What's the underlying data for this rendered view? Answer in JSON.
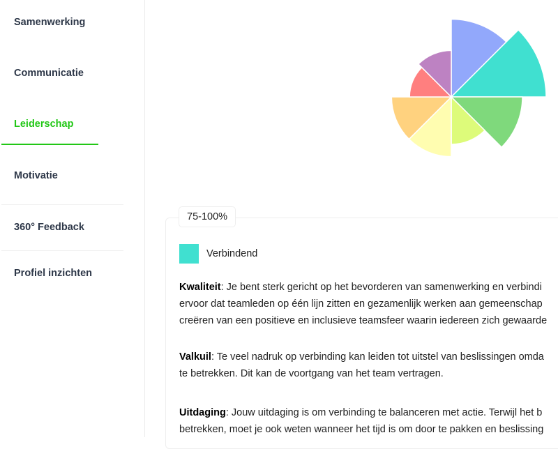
{
  "sidebar": {
    "items": [
      {
        "label": "Samenwerking",
        "active": false
      },
      {
        "label": "Communicatie",
        "active": false
      },
      {
        "label": "Leiderschap",
        "active": true
      },
      {
        "label": "Motivatie",
        "active": false
      },
      {
        "label": "360° Feedback",
        "active": false
      },
      {
        "label": "Profiel inzichten",
        "active": false
      }
    ],
    "accent": "#22c716"
  },
  "chart_data": {
    "type": "polar-area",
    "segments": [
      {
        "value": 82,
        "color": "#92a8fb"
      },
      {
        "value": 100,
        "color": "#40e0d0"
      },
      {
        "value": 75,
        "color": "#7fd97c"
      },
      {
        "value": 50,
        "color": "#ddfb7a"
      },
      {
        "value": 63,
        "color": "#fffdb0"
      },
      {
        "value": 63,
        "color": "#ffd27f"
      },
      {
        "value": 44,
        "color": "#ff7f7f"
      },
      {
        "value": 49,
        "color": "#bd82c2"
      }
    ]
  },
  "detail": {
    "range_badge": "75-100%",
    "legend": {
      "label": "Verbindend",
      "color": "#40e0d0"
    },
    "sections": [
      {
        "title": "Kwaliteit",
        "lines": [
          ": Je bent sterk gericht op het bevorderen van samenwerking en verbindi",
          "ervoor dat teamleden op één lijn zitten en gezamenlijk werken aan gemeenschap",
          "creëren van een positieve en inclusieve teamsfeer waarin iedereen zich gewaarde"
        ]
      },
      {
        "title": "Valkuil",
        "lines": [
          ": Te veel nadruk op verbinding kan leiden tot uitstel van beslissingen omda",
          "te betrekken. Dit kan de voortgang van het team vertragen."
        ]
      },
      {
        "title": "Uitdaging",
        "lines": [
          ": Jouw uitdaging is om verbinding te balanceren met actie. Terwijl het b",
          "betrekken, moet je ook weten wanneer het tijd is om door te pakken en beslissing"
        ]
      }
    ]
  }
}
